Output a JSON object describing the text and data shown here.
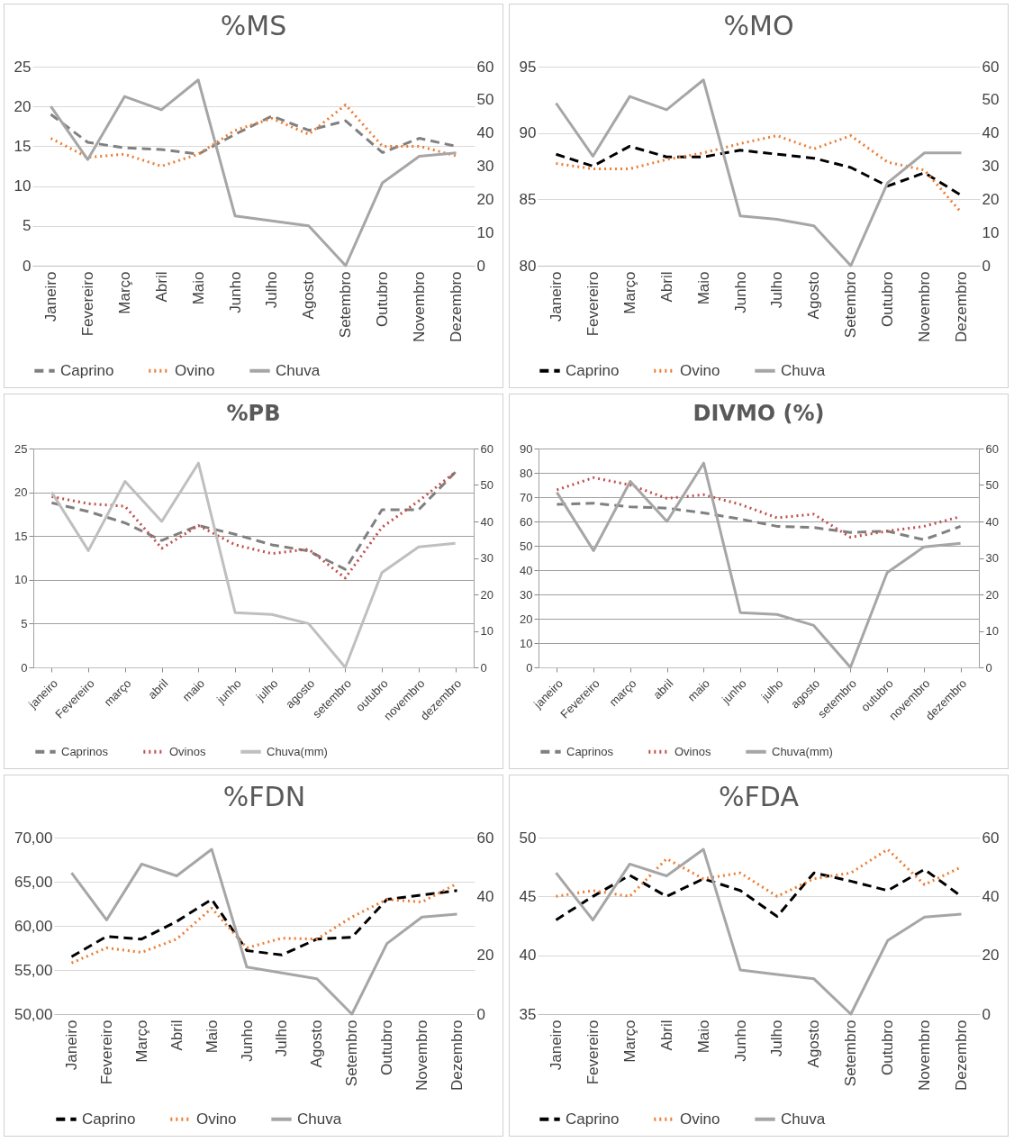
{
  "chart_data": [
    {
      "type": "line",
      "title": "%MS",
      "categories": [
        "Janeiro",
        "Fevereiro",
        "Março",
        "Abril",
        "Maio",
        "Junho",
        "Julho",
        "Agosto",
        "Setembro",
        "Outubro",
        "Novembro",
        "Dezembro"
      ],
      "ylim": [
        0,
        25
      ],
      "yticks": [
        0,
        5,
        10,
        15,
        20,
        25
      ],
      "y2lim": [
        0,
        60
      ],
      "y2ticks": [
        0,
        10,
        20,
        30,
        40,
        50,
        60
      ],
      "grid": "y",
      "legend": "bottom",
      "series": [
        {
          "name": "Caprino",
          "color": "#808080",
          "line_style": "dashed",
          "values": [
            19,
            15.5,
            14.8,
            14.6,
            14,
            16.5,
            18.8,
            17,
            18.2,
            14.2,
            16,
            15
          ]
        },
        {
          "name": "Ovino",
          "color": "#ed7d31",
          "line_style": "dotted",
          "values": [
            16,
            13.6,
            14,
            12.5,
            14,
            17,
            18.5,
            16.5,
            20.2,
            15,
            15,
            13.8
          ]
        },
        {
          "name": "Chuva",
          "color": "#a6a6a6",
          "line_style": "solid",
          "axis": "y2",
          "values": [
            48,
            32,
            51,
            47,
            56,
            15,
            13.5,
            12,
            0,
            25,
            33,
            34
          ]
        }
      ]
    },
    {
      "type": "line",
      "title": "%MO",
      "categories": [
        "Janeiro",
        "Fevereiro",
        "Março",
        "Abril",
        "Maio",
        "Junho",
        "Julho",
        "Agosto",
        "Setembro",
        "Outubro",
        "Novembro",
        "Dezembro"
      ],
      "ylim": [
        80,
        95
      ],
      "yticks": [
        80,
        85,
        90,
        95
      ],
      "y2lim": [
        0,
        60
      ],
      "y2ticks": [
        0,
        10,
        20,
        30,
        40,
        50,
        60
      ],
      "grid": "y",
      "legend": "bottom",
      "series": [
        {
          "name": "Caprino",
          "color": "#000000",
          "line_style": "dashed",
          "values": [
            88.4,
            87.5,
            89,
            88.2,
            88.2,
            88.7,
            88.4,
            88.1,
            87.4,
            86,
            87,
            85.3
          ]
        },
        {
          "name": "Ovino",
          "color": "#ed7d31",
          "line_style": "dotted",
          "values": [
            87.7,
            87.3,
            87.3,
            88,
            88.5,
            89.2,
            89.8,
            88.8,
            89.8,
            87.8,
            87.2,
            84
          ]
        },
        {
          "name": "Chuva",
          "color": "#a6a6a6",
          "line_style": "solid",
          "axis": "y2",
          "values": [
            49,
            33,
            51,
            47,
            56,
            15,
            14,
            12,
            0,
            25,
            34,
            34
          ]
        }
      ]
    },
    {
      "type": "line",
      "title": "%PB",
      "categories": [
        "janeiro",
        "Fevereiro",
        "março",
        "abril",
        "maio",
        "junho",
        "julho",
        "agosto",
        "setembro",
        "outubro",
        "novembro",
        "dezembro"
      ],
      "ylim": [
        0,
        25
      ],
      "yticks": [
        0,
        5,
        10,
        15,
        20,
        25
      ],
      "y2lim": [
        0,
        60
      ],
      "y2ticks": [
        0,
        10,
        20,
        30,
        40,
        50,
        60
      ],
      "grid": "y",
      "legend": "bottom",
      "series": [
        {
          "name": "Caprinos",
          "color": "#808080",
          "line_style": "dashed",
          "values": [
            18.8,
            17.8,
            16.5,
            14.5,
            16.2,
            15.2,
            14,
            13.3,
            11.2,
            18,
            18,
            22.3
          ]
        },
        {
          "name": "Ovinos",
          "color": "#c0504d",
          "line_style": "dotted",
          "values": [
            19.5,
            18.7,
            18.4,
            13.6,
            16.2,
            14,
            13,
            13.5,
            10.2,
            16,
            19,
            22.3
          ]
        },
        {
          "name": "Chuva(mm)",
          "color": "#bfbfbf",
          "line_style": "solid",
          "axis": "y2",
          "values": [
            48,
            32,
            51,
            40,
            56,
            15,
            14.5,
            12,
            0,
            26,
            33,
            34
          ]
        }
      ]
    },
    {
      "type": "line",
      "title": "DIVMO (%)",
      "categories": [
        "janeiro",
        "Fevereiro",
        "março",
        "abril",
        "maio",
        "junho",
        "julho",
        "agosto",
        "setembro",
        "outubro",
        "novembro",
        "dezembro"
      ],
      "ylim": [
        0,
        90
      ],
      "yticks": [
        0,
        10,
        20,
        30,
        40,
        50,
        60,
        70,
        80,
        90
      ],
      "y2lim": [
        0,
        60
      ],
      "y2ticks": [
        0,
        10,
        20,
        30,
        40,
        50,
        60
      ],
      "grid": "y",
      "legend": "bottom",
      "series": [
        {
          "name": "Caprinos",
          "color": "#808080",
          "line_style": "dashed",
          "values": [
            67,
            67.5,
            66,
            65.5,
            63.5,
            61,
            58,
            57.5,
            55.5,
            56,
            52.5,
            58
          ]
        },
        {
          "name": "Ovinos",
          "color": "#c0504d",
          "line_style": "dotted",
          "values": [
            73,
            78,
            75,
            69.5,
            71,
            67,
            61.5,
            63,
            53.5,
            56,
            58,
            62
          ]
        },
        {
          "name": "Chuva(mm)",
          "color": "#a6a6a6",
          "line_style": "solid",
          "axis": "y2",
          "values": [
            48,
            32,
            51,
            40,
            56,
            15,
            14.5,
            11.5,
            0,
            26,
            33,
            34
          ]
        }
      ]
    },
    {
      "type": "line",
      "title": "%FDN",
      "categories": [
        "Janeiro",
        "Fevereiro",
        "Março",
        "Abril",
        "Maio",
        "Junho",
        "Julho",
        "Agosto",
        "Setembro",
        "Outubro",
        "Novembro",
        "Dezembro"
      ],
      "ylim": [
        50,
        70
      ],
      "yticks": [
        {
          "value": 50,
          "label": "50,00"
        },
        {
          "value": 55,
          "label": "55,00"
        },
        {
          "value": 60,
          "label": "60,00"
        },
        {
          "value": 65,
          "label": "65,00"
        },
        {
          "value": 70,
          "label": "70,00"
        }
      ],
      "y2lim": [
        0,
        60
      ],
      "y2ticks": [
        0,
        20,
        40,
        60
      ],
      "grid": "y",
      "legend": "bottom",
      "series": [
        {
          "name": "Caprino",
          "color": "#000000",
          "line_style": "dashed",
          "values": [
            56.5,
            58.8,
            58.5,
            60.5,
            63,
            57.2,
            56.7,
            58.5,
            58.7,
            63,
            63.5,
            64
          ]
        },
        {
          "name": "Ovino",
          "color": "#ed7d31",
          "line_style": "dotted",
          "values": [
            55.8,
            57.5,
            57,
            58.5,
            62,
            57.5,
            58.6,
            58.5,
            61,
            63,
            62.7,
            64.8
          ]
        },
        {
          "name": "Chuva",
          "color": "#a6a6a6",
          "line_style": "solid",
          "axis": "y2",
          "values": [
            48,
            32,
            51,
            47,
            56,
            16,
            14,
            12,
            0,
            24,
            33,
            34
          ]
        }
      ]
    },
    {
      "type": "line",
      "title": "%FDA",
      "categories": [
        "Janeiro",
        "Fevereiro",
        "Março",
        "Abril",
        "Maio",
        "Junho",
        "Julho",
        "Agosto",
        "Setembro",
        "Outubro",
        "Novembro",
        "Dezembro"
      ],
      "ylim": [
        35,
        50
      ],
      "yticks": [
        35,
        40,
        45,
        50
      ],
      "y2lim": [
        0,
        60
      ],
      "y2ticks": [
        0,
        20,
        40,
        60
      ],
      "grid": "y",
      "legend": "bottom",
      "series": [
        {
          "name": "Caprino",
          "color": "#000000",
          "line_style": "dashed",
          "values": [
            43,
            45,
            46.8,
            45,
            46.5,
            45.5,
            43.3,
            47,
            46.3,
            45.5,
            47.3,
            45
          ]
        },
        {
          "name": "Ovino",
          "color": "#ed7d31",
          "line_style": "dotted",
          "values": [
            45,
            45.5,
            45,
            48.2,
            46.5,
            47,
            45,
            46.5,
            47,
            49,
            46,
            47.5
          ]
        },
        {
          "name": "Chuva",
          "color": "#a6a6a6",
          "line_style": "solid",
          "axis": "y2",
          "values": [
            48,
            32,
            51,
            47,
            56,
            15,
            13.5,
            12,
            0,
            25,
            33,
            34
          ]
        }
      ]
    }
  ]
}
